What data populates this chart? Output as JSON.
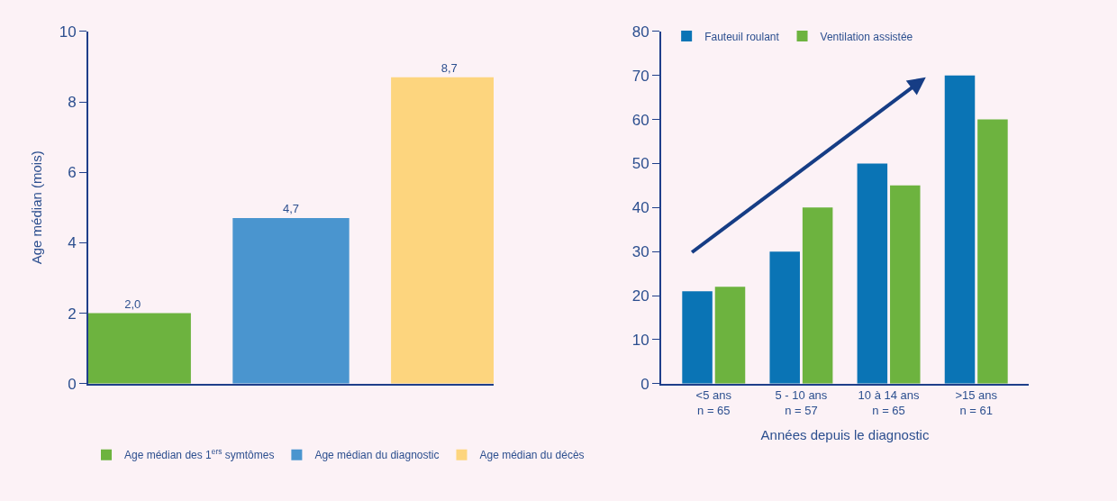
{
  "chart_data": [
    {
      "type": "bar",
      "ylabel": "Age médian (mois)",
      "categories": [
        null,
        null,
        null
      ],
      "ylim": [
        0,
        10
      ],
      "yticks": [
        0,
        2,
        4,
        6,
        8,
        10
      ],
      "grid": false,
      "legend": "bottom",
      "tick_labels": "y",
      "series": [
        {
          "name": "Age médian des 1$^{ers}$ symtômes",
          "color": "#6db33f",
          "values": [
            2.0,
            null,
            null
          ],
          "value_labels": [
            "2,0",
            null,
            null
          ]
        },
        {
          "name": "Age médian du diagnostic",
          "color": "#4a95cf",
          "values": [
            null,
            4.7,
            null
          ],
          "value_labels": [
            null,
            "4,7",
            null
          ]
        },
        {
          "name": "Age médian du décès",
          "color": "#fdd57e",
          "values": [
            null,
            null,
            8.7
          ],
          "value_labels": [
            null,
            null,
            "8,7"
          ]
        }
      ]
    },
    {
      "type": "bar",
      "xlabel": "Années depuis le diagnostic",
      "categories": [
        "<5 ans\nn = 65",
        "5 - 10 ans\nn = 57",
        "10 à 14 ans\nn = 65",
        ">15 ans\nn = 61"
      ],
      "ylim": [
        0,
        80
      ],
      "yticks": [
        0,
        10,
        20,
        30,
        40,
        50,
        60,
        70,
        80
      ],
      "grid": false,
      "legend": "top left",
      "series": [
        {
          "name": "Fauteuil roulant",
          "color": "#0a74b5",
          "values": [
            21,
            30,
            50,
            70
          ]
        },
        {
          "name": "Ventilation assistée",
          "color": "#6db33f",
          "values": [
            22,
            40,
            45,
            60
          ]
        }
      ]
    }
  ]
}
